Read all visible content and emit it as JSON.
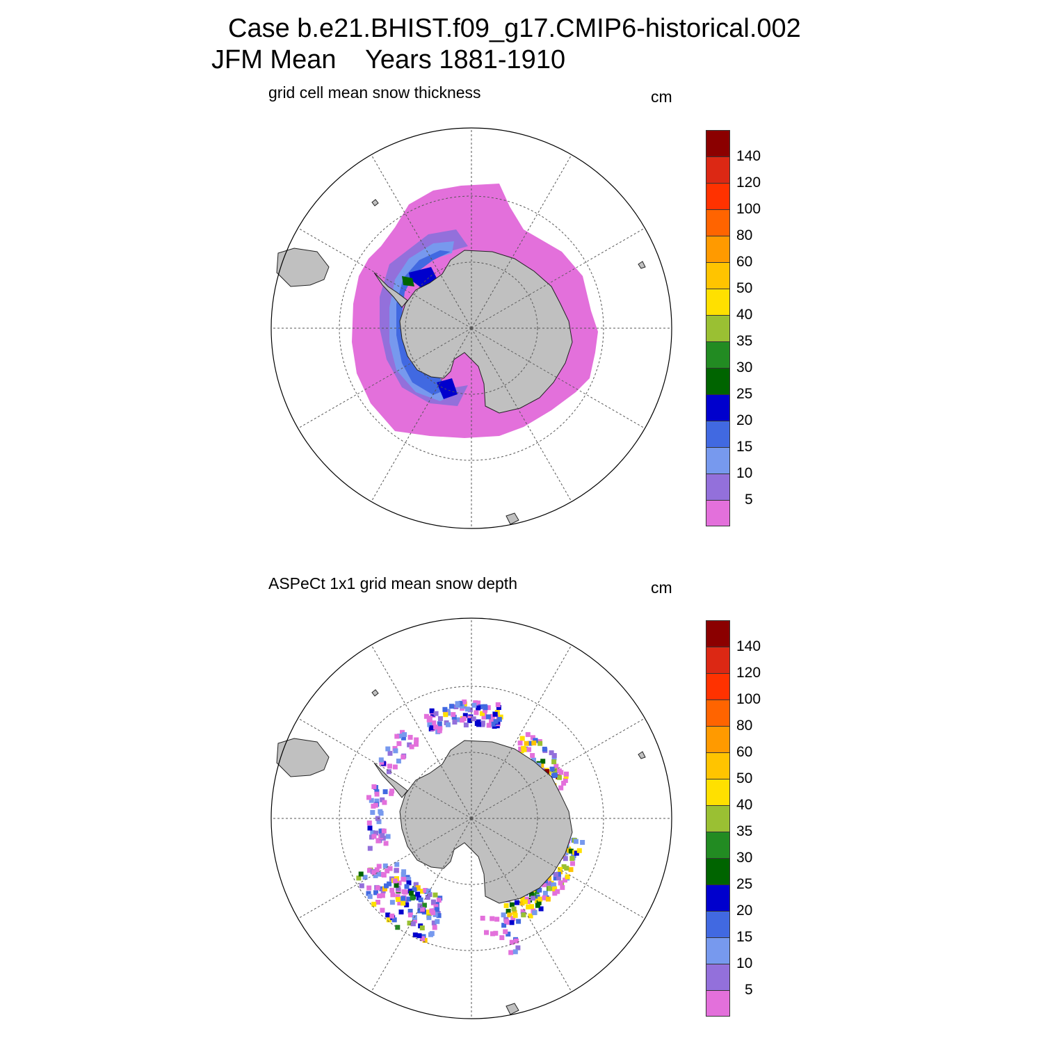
{
  "title_line1": "Case b.e21.BHIST.f09_g17.CMIP6-historical.002",
  "title_line2": "JFM Mean    Years 1881-1910",
  "colorbar": {
    "colors": [
      "#e370db",
      "#9370db",
      "#7799ee",
      "#4169e1",
      "#0000cd",
      "#006400",
      "#228b22",
      "#9ac033",
      "#ffe000",
      "#ffc400",
      "#ff9a00",
      "#ff6400",
      "#ff3200",
      "#dc2814",
      "#8b0000"
    ],
    "labels": [
      "5",
      "10",
      "15",
      "20",
      "25",
      "30",
      "35",
      "40",
      "50",
      "60",
      "80",
      "100",
      "120",
      "140"
    ]
  },
  "panels": [
    {
      "id": "model",
      "subtitle": "grid cell mean snow thickness",
      "units": "cm",
      "source": "model"
    },
    {
      "id": "obs",
      "subtitle": "ASPeCt 1x1 grid mean snow depth",
      "units": "cm",
      "source": "observations"
    }
  ]
}
